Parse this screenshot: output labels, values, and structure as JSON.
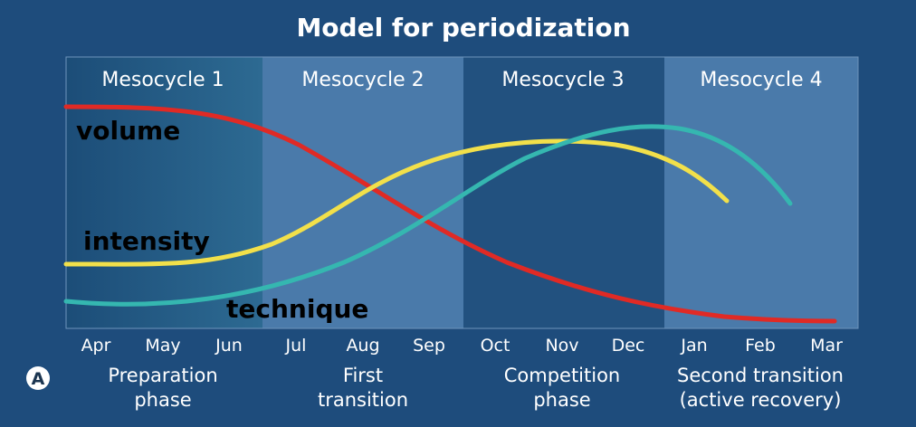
{
  "title": "Model for periodization",
  "badge": "A",
  "mesocycles": [
    "Mesocycle 1",
    "Mesocycle 2",
    "Mesocycle 3",
    "Mesocycle 4"
  ],
  "months": [
    "Apr",
    "May",
    "Jun",
    "Jul",
    "Aug",
    "Sep",
    "Oct",
    "Nov",
    "Dec",
    "Jan",
    "Feb",
    "Mar"
  ],
  "phases": [
    [
      "Preparation",
      "phase"
    ],
    [
      "First",
      "transition"
    ],
    [
      "Competition",
      "phase"
    ],
    [
      "Second transition",
      "(active recovery)"
    ]
  ],
  "curve_labels": {
    "volume": "volume",
    "intensity": "intensity",
    "technique": "technique"
  },
  "colors": {
    "background": "#1e4c7c",
    "panel_light": "#4a7aaa",
    "panel_dark": "#22517f",
    "panel_first": "#235a86",
    "volume": "#e02a25",
    "intensity": "#f2e04a",
    "technique": "#35b7b0"
  }
}
